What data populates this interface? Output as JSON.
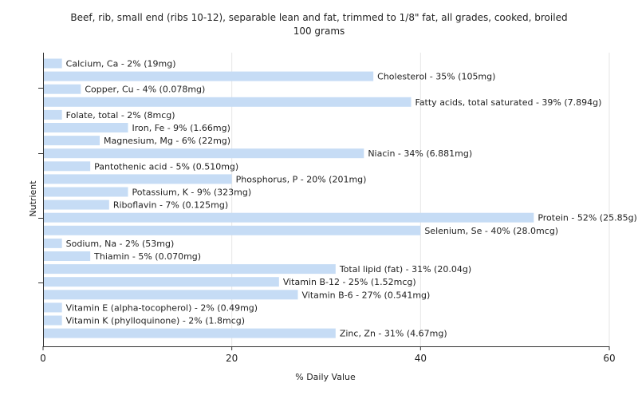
{
  "chart_data": {
    "type": "bar",
    "orientation": "horizontal",
    "title": "Beef, rib, small end (ribs 10-12), separable lean and fat, trimmed to 1/8\" fat, all grades, cooked, broiled",
    "subtitle": "100 grams",
    "xlabel": "% Daily Value",
    "ylabel": "Nutrient",
    "xlim": [
      0,
      60
    ],
    "xticks": [
      0,
      20,
      40,
      60
    ],
    "bar_color": "#c6dcf5",
    "grid_color": "#e6e6e6",
    "categories": [
      "Calcium, Ca",
      "Cholesterol",
      "Copper, Cu",
      "Fatty acids, total saturated",
      "Folate, total",
      "Iron, Fe",
      "Magnesium, Mg",
      "Niacin",
      "Pantothenic acid",
      "Phosphorus, P",
      "Potassium, K",
      "Riboflavin",
      "Protein",
      "Selenium, Se",
      "Sodium, Na",
      "Thiamin",
      "Total lipid (fat)",
      "Vitamin B-12",
      "Vitamin B-6",
      "Vitamin E (alpha-tocopherol)",
      "Vitamin K (phylloquinone)",
      "Zinc, Zn"
    ],
    "values": [
      2,
      35,
      4,
      39,
      2,
      9,
      6,
      34,
      5,
      20,
      9,
      7,
      52,
      40,
      2,
      5,
      31,
      25,
      27,
      2,
      2,
      31
    ],
    "labels": [
      "Calcium, Ca - 2% (19mg)",
      "Cholesterol - 35% (105mg)",
      "Copper, Cu - 4% (0.078mg)",
      "Fatty acids, total saturated - 39% (7.894g)",
      "Folate, total - 2% (8mcg)",
      "Iron, Fe - 9% (1.66mg)",
      "Magnesium, Mg - 6% (22mg)",
      "Niacin - 34% (6.881mg)",
      "Pantothenic acid - 5% (0.510mg)",
      "Phosphorus, P - 20% (201mg)",
      "Potassium, K - 9% (323mg)",
      "Riboflavin - 7% (0.125mg)",
      "Protein - 52% (25.85g)",
      "Selenium, Se - 40% (28.0mcg)",
      "Sodium, Na - 2% (53mg)",
      "Thiamin - 5% (0.070mg)",
      "Total lipid (fat) - 31% (20.04g)",
      "Vitamin B-12 - 25% (1.52mcg)",
      "Vitamin B-6 - 27% (0.541mg)",
      "Vitamin E (alpha-tocopherol) - 2% (0.49mg)",
      "Vitamin K (phylloquinone) - 2% (1.8mcg)",
      "Zinc, Zn - 31% (4.67mg)"
    ]
  }
}
